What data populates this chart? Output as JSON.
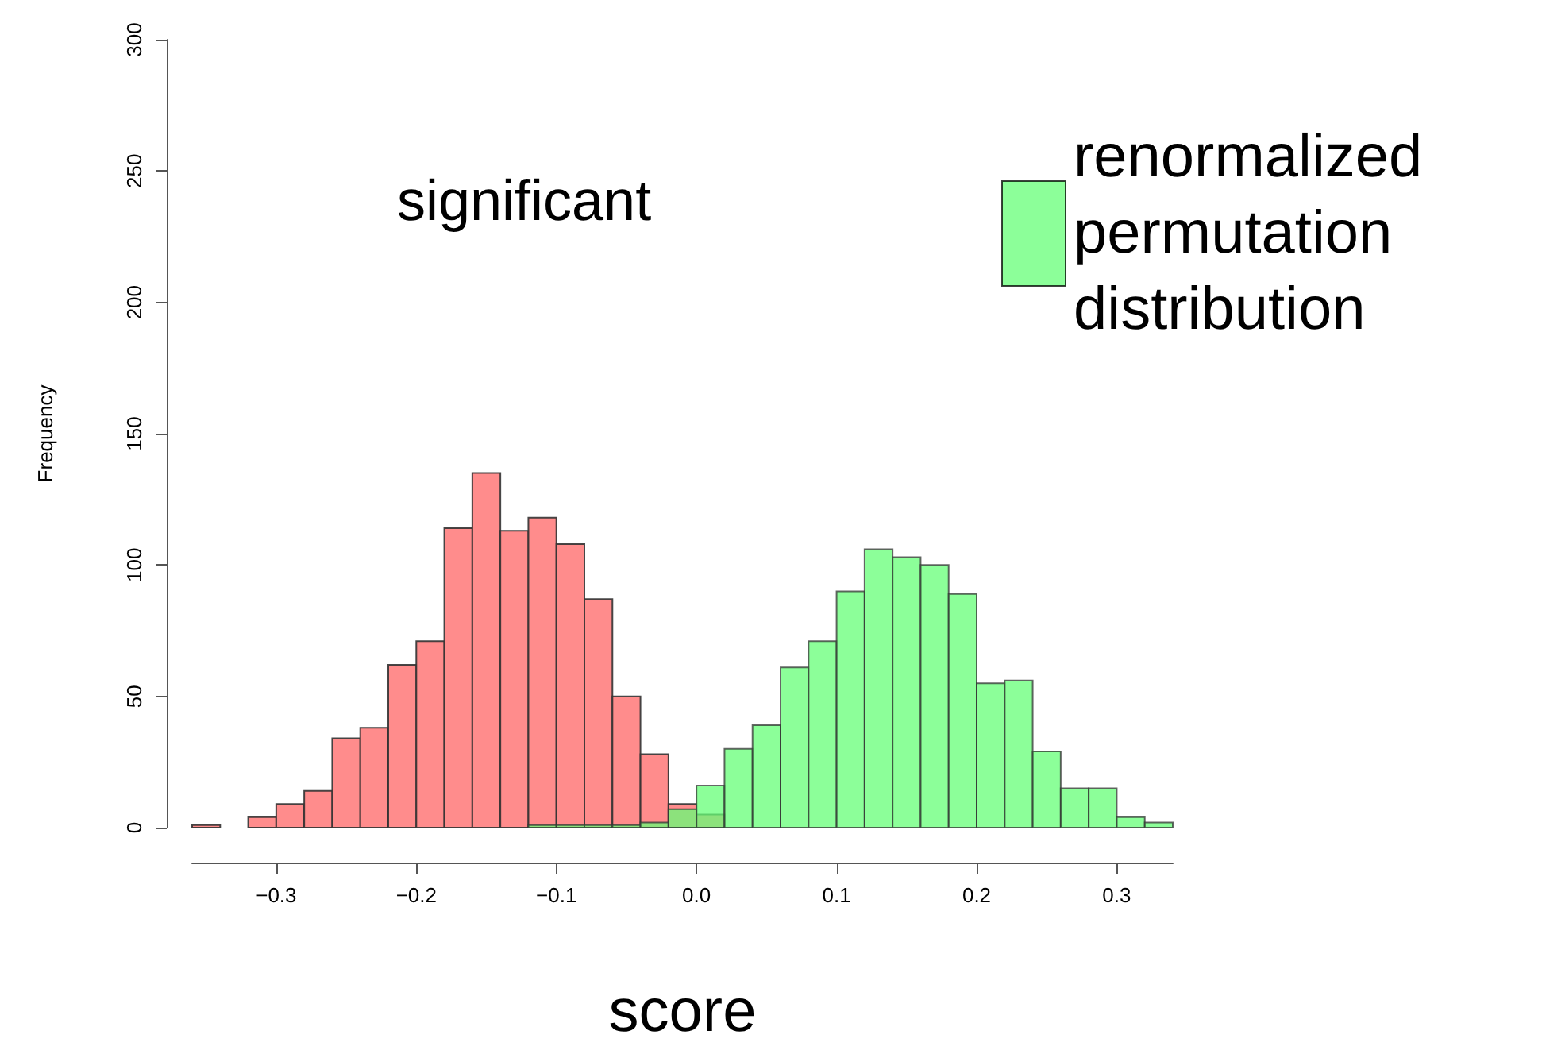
{
  "chart_data": {
    "type": "histogram",
    "xlabel": "score",
    "ylabel": "Frequency",
    "annotations": [
      "significant"
    ],
    "bins": [
      -0.36,
      -0.34,
      -0.32,
      -0.3,
      -0.28,
      -0.26,
      -0.24,
      -0.22,
      -0.2,
      -0.18,
      -0.16,
      -0.14,
      -0.12,
      -0.1,
      -0.08,
      -0.06,
      -0.04,
      -0.02,
      0,
      0.02,
      0.04,
      0.06,
      0.08,
      0.1,
      0.12,
      0.14,
      0.16,
      0.18,
      0.2,
      0.22,
      0.24,
      0.26,
      0.28,
      0.3,
      0.32,
      0.34
    ],
    "series": [
      {
        "color": "#ff8080",
        "values": [
          1,
          0,
          4,
          9,
          14,
          34,
          38,
          62,
          71,
          114,
          135,
          113,
          118,
          108,
          87,
          50,
          28,
          9,
          5,
          0,
          0,
          0,
          0,
          0,
          0,
          0,
          0,
          0,
          0,
          0,
          0,
          0,
          0,
          0,
          0
        ]
      },
      {
        "name": "renormalized permutation distribution",
        "color": "#66ff77",
        "values": [
          0,
          0,
          0,
          0,
          0,
          0,
          0,
          0,
          0,
          0,
          0,
          0,
          1,
          1,
          1,
          1,
          2,
          7,
          16,
          30,
          39,
          61,
          71,
          90,
          106,
          103,
          100,
          89,
          55,
          56,
          29,
          15,
          15,
          4,
          2
        ]
      }
    ],
    "xlim": [
      -0.36,
      0.34
    ],
    "xticks": [
      -0.3,
      -0.2,
      -0.1,
      {
        "value": 0,
        "label": "0.0"
      },
      0.1,
      0.2,
      0.3
    ],
    "ylim": [
      0,
      300
    ],
    "yticks": [
      0,
      50,
      100,
      150,
      200,
      250,
      300
    ],
    "grid": false,
    "legend": "top right"
  }
}
